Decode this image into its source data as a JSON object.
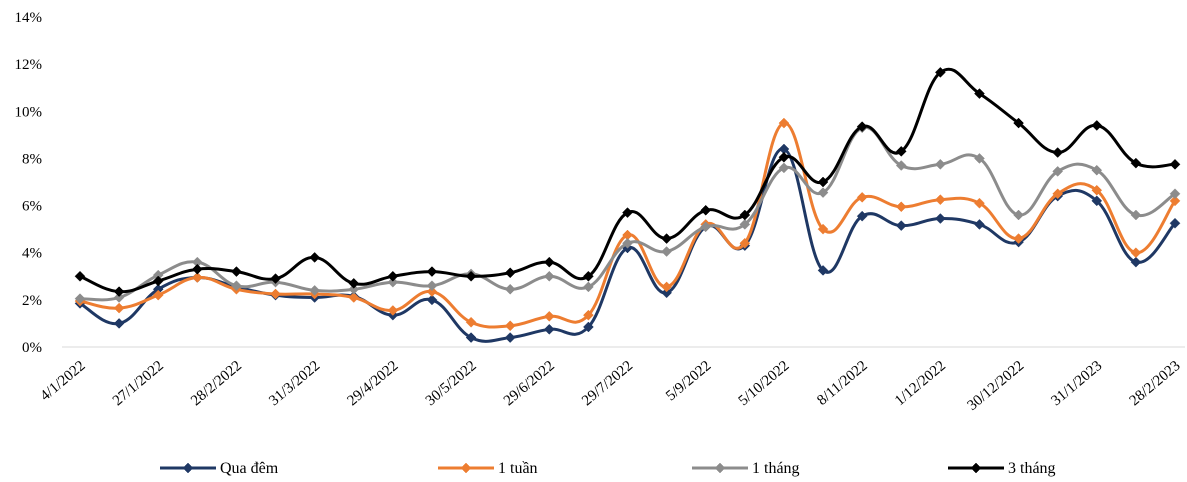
{
  "chart_data": {
    "type": "line",
    "y_ticks": [
      "0%",
      "2%",
      "4%",
      "6%",
      "8%",
      "10%",
      "12%",
      "14%"
    ],
    "ylim": [
      0,
      14
    ],
    "x_tick_labels": [
      "4/1/2022",
      "27/1/2022",
      "28/2/2022",
      "31/3/2022",
      "29/4/2022",
      "30/5/2022",
      "29/6/2022",
      "29/7/2022",
      "5/9/2022",
      "5/10/2022",
      "8/11/2022",
      "1/12/2022",
      "30/12/2022",
      "31/1/2023",
      "28/2/2023"
    ],
    "grid": false,
    "legend_position": "bottom",
    "series": [
      {
        "name": "Qua đêm",
        "color": "#1f3864",
        "values": [
          1.85,
          1.0,
          2.45,
          2.95,
          2.55,
          2.2,
          2.1,
          2.15,
          1.35,
          2.0,
          0.4,
          0.4,
          0.75,
          0.85,
          4.2,
          2.3,
          5.1,
          4.3,
          8.4,
          3.25,
          5.55,
          5.15,
          5.45,
          5.2,
          4.45,
          6.4,
          6.2,
          3.6,
          5.25
        ]
      },
      {
        "name": "1 tuần",
        "color": "#ed7d31",
        "values": [
          1.95,
          1.65,
          2.2,
          2.95,
          2.45,
          2.25,
          2.25,
          2.1,
          1.55,
          2.35,
          1.05,
          0.9,
          1.3,
          1.35,
          4.75,
          2.55,
          5.2,
          4.4,
          9.5,
          5.0,
          6.35,
          5.95,
          6.25,
          6.1,
          4.6,
          6.5,
          6.65,
          4.0,
          6.2
        ]
      },
      {
        "name": "1 tháng",
        "color": "#8c8c8c",
        "values": [
          2.05,
          2.1,
          3.05,
          3.6,
          2.6,
          2.75,
          2.4,
          2.45,
          2.75,
          2.6,
          3.1,
          2.45,
          3.0,
          2.55,
          4.4,
          4.05,
          5.1,
          5.2,
          7.6,
          6.55,
          9.3,
          7.7,
          7.75,
          8.0,
          5.6,
          7.45,
          7.5,
          5.6,
          6.5
        ]
      },
      {
        "name": "3 tháng",
        "color": "#000000",
        "values": [
          3.0,
          2.35,
          2.8,
          3.3,
          3.2,
          2.9,
          3.8,
          2.7,
          3.0,
          3.2,
          3.0,
          3.15,
          3.6,
          3.0,
          5.7,
          4.6,
          5.8,
          5.6,
          8.05,
          7.0,
          9.35,
          8.3,
          11.65,
          10.75,
          9.5,
          8.25,
          9.4,
          7.8,
          7.75
        ]
      }
    ]
  }
}
